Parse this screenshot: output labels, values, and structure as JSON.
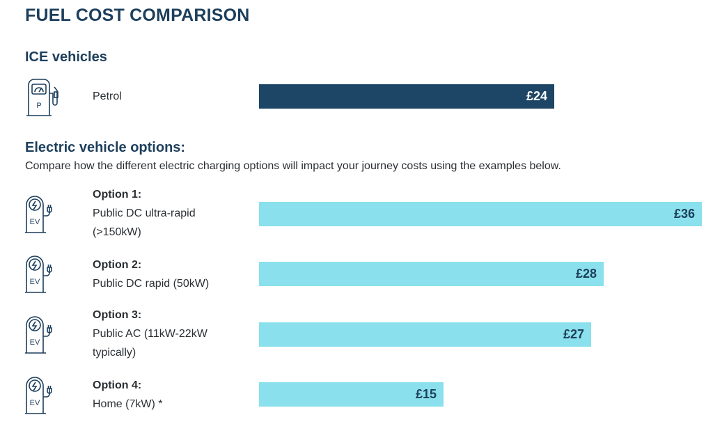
{
  "title": "FUEL COST COMPARISON",
  "ice": {
    "heading": "ICE vehicles",
    "icon": "petrol-pump-icon",
    "icon_letter": "P",
    "label": "Petrol"
  },
  "ev": {
    "heading": "Electric vehicle options:",
    "description": "Compare how the different electric charging options will impact your journey costs using the examples below.",
    "icon": "ev-charger-icon",
    "icon_text": "EV",
    "options": [
      {
        "title": "Option 1:",
        "label": "Public DC ultra-rapid (>150kW)"
      },
      {
        "title": "Option 2:",
        "label": "Public DC rapid (50kW)"
      },
      {
        "title": "Option 3:",
        "label": "Public AC (11kW-22kW typically)"
      },
      {
        "title": "Option 4:",
        "label": "Home (7kW) *"
      }
    ]
  },
  "colors": {
    "ice_bar": "#1d4565",
    "ev_bar": "#8ae0ec",
    "ice_text": "#ffffff",
    "ev_text": "#1d3f5c"
  },
  "chart_data": {
    "type": "bar",
    "orientation": "horizontal",
    "title": "FUEL COST COMPARISON",
    "categories": [
      "Petrol",
      "Public DC ultra-rapid (>150kW)",
      "Public DC rapid (50kW)",
      "Public AC (11kW-22kW typically)",
      "Home (7kW) *"
    ],
    "values": [
      24,
      36,
      28,
      27,
      15
    ],
    "value_labels": [
      "£24",
      "£36",
      "£28",
      "£27",
      "£15"
    ],
    "unit": "£",
    "xlim": [
      0,
      36
    ],
    "grid": false,
    "legend": "none"
  }
}
